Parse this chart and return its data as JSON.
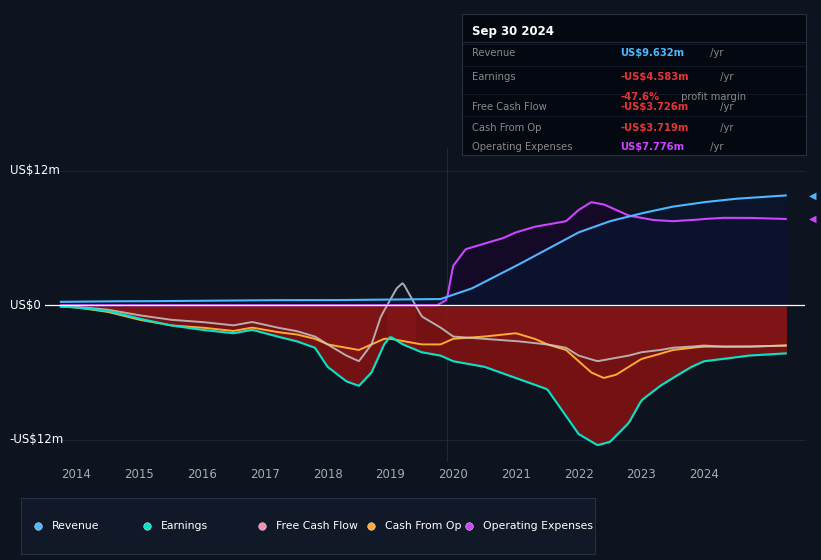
{
  "bg_color": "#0d1420",
  "chart_bg": "#0d1420",
  "ylabel_top": "US$12m",
  "ylabel_zero": "US$0",
  "ylabel_bottom": "-US$12m",
  "ylim": [
    -14,
    14
  ],
  "xlim": [
    2013.5,
    2025.6
  ],
  "revenue_color": "#4db8ff",
  "earnings_color": "#00e5cc",
  "fcf_color": "#c8c8c8",
  "cashfromop_color": "#ffaa33",
  "opex_color": "#cc44ff",
  "fill_negative_color": "#8b1515",
  "fill_opex_color": "#1a0a3a",
  "zero_line_color": "#ffffff",
  "grid_color": "#1e2a3a",
  "text_color": "#aaaaaa",
  "white": "#ffffff",
  "info_bg": "#050a0f",
  "info_border": "#333333",
  "legend_bg": "#111827",
  "legend_border": "#2a3a4a",
  "x_ticks": [
    2014,
    2015,
    2016,
    2017,
    2018,
    2019,
    2020,
    2021,
    2022,
    2023,
    2024
  ],
  "legend": [
    {
      "label": "Revenue",
      "color": "#4db8ff"
    },
    {
      "label": "Earnings",
      "color": "#00e5cc"
    },
    {
      "label": "Free Cash Flow",
      "color": "#f48fb1"
    },
    {
      "label": "Cash From Op",
      "color": "#ffaa33"
    },
    {
      "label": "Operating Expenses",
      "color": "#cc44ff"
    }
  ]
}
